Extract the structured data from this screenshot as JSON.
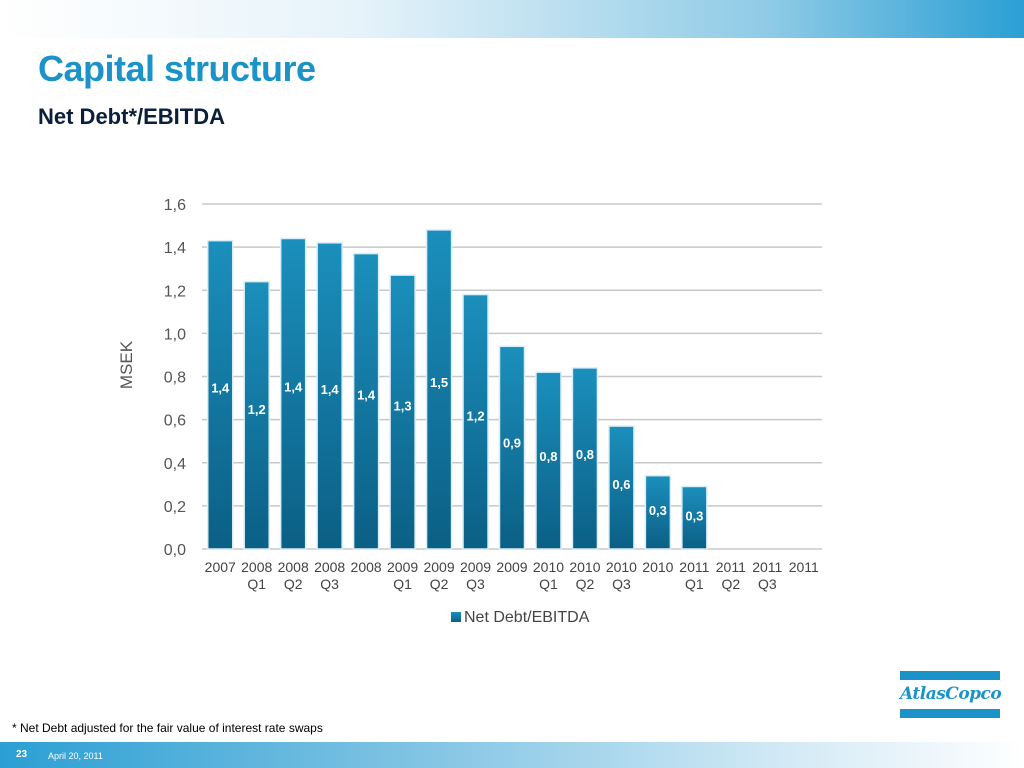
{
  "header": {
    "title": "Capital structure",
    "subtitle": "Net Debt*/EBITDA"
  },
  "footer": {
    "footnote": "* Net Debt adjusted for the fair value of interest rate swaps",
    "page_number": "23",
    "date": "April 20, 2011"
  },
  "logo": {
    "text": "AtlasCopco"
  },
  "colors": {
    "title": "#1b93c9",
    "bar_top": "#1b8fbc",
    "bar_bottom": "#0b5f85",
    "grid": "#c8c8c8"
  },
  "chart_data": {
    "type": "bar",
    "xlabel": "",
    "ylabel": "MSEK",
    "ylim": [
      0,
      1.6
    ],
    "yticks": [
      "0,0",
      "0,2",
      "0,4",
      "0,6",
      "0,8",
      "1,0",
      "1,2",
      "1,4",
      "1,6"
    ],
    "grid": true,
    "legend": "bottom",
    "categories": [
      [
        "2007",
        ""
      ],
      [
        "2008",
        "Q1"
      ],
      [
        "2008",
        "Q2"
      ],
      [
        "2008",
        "Q3"
      ],
      [
        "2008",
        ""
      ],
      [
        "2009",
        "Q1"
      ],
      [
        "2009",
        "Q2"
      ],
      [
        "2009",
        "Q3"
      ],
      [
        "2009",
        ""
      ],
      [
        "2010",
        "Q1"
      ],
      [
        "2010",
        "Q2"
      ],
      [
        "2010",
        "Q3"
      ],
      [
        "2010",
        ""
      ],
      [
        "2011",
        "Q1"
      ],
      [
        "2011",
        "Q2"
      ],
      [
        "2011",
        "Q3"
      ],
      [
        "2011",
        ""
      ]
    ],
    "series": [
      {
        "name": "Net Debt/EBITDA",
        "values": [
          1.43,
          1.24,
          1.44,
          1.42,
          1.37,
          1.27,
          1.48,
          1.18,
          0.94,
          0.82,
          0.84,
          0.57,
          0.34,
          0.29,
          null,
          null,
          null
        ],
        "labels": [
          "1,4",
          "1,2",
          "1,4",
          "1,4",
          "1,4",
          "1,3",
          "1,5",
          "1,2",
          "0,9",
          "0,8",
          "0,8",
          "0,6",
          "0,3",
          "0,3",
          "",
          "",
          ""
        ]
      }
    ]
  }
}
